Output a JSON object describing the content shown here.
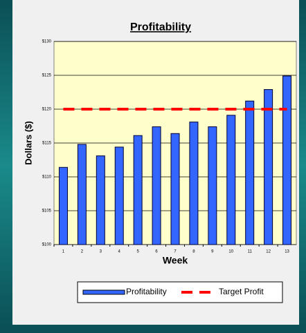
{
  "chart_data": {
    "type": "bar",
    "title": "Profitability",
    "x_label": "Week",
    "y_label": "Dollars ($)",
    "categories": [
      "1",
      "2",
      "3",
      "4",
      "5",
      "6",
      "7",
      "8",
      "9",
      "10",
      "11",
      "12",
      "13"
    ],
    "series": [
      {
        "name": "Profitability",
        "type": "bar",
        "color": "#3366ff",
        "values": [
          111.4,
          114.8,
          113.1,
          114.4,
          116.1,
          117.4,
          116.4,
          118.1,
          117.4,
          119.1,
          121.2,
          122.9,
          124.9
        ]
      },
      {
        "name": "Target Profit",
        "type": "line",
        "color": "#ff0000",
        "values": [
          120,
          120,
          120,
          120,
          120,
          120,
          120,
          120,
          120,
          120,
          120,
          120,
          120
        ]
      }
    ],
    "ylim": [
      100,
      130
    ],
    "yticks": [
      {
        "value": 100,
        "label": "$100"
      },
      {
        "value": 105,
        "label": "$105"
      },
      {
        "value": 110,
        "label": "$110"
      },
      {
        "value": 115,
        "label": "$115"
      },
      {
        "value": 120,
        "label": "$120"
      },
      {
        "value": 125,
        "label": "$125"
      },
      {
        "value": 130,
        "label": "$130"
      }
    ],
    "grid": true
  }
}
